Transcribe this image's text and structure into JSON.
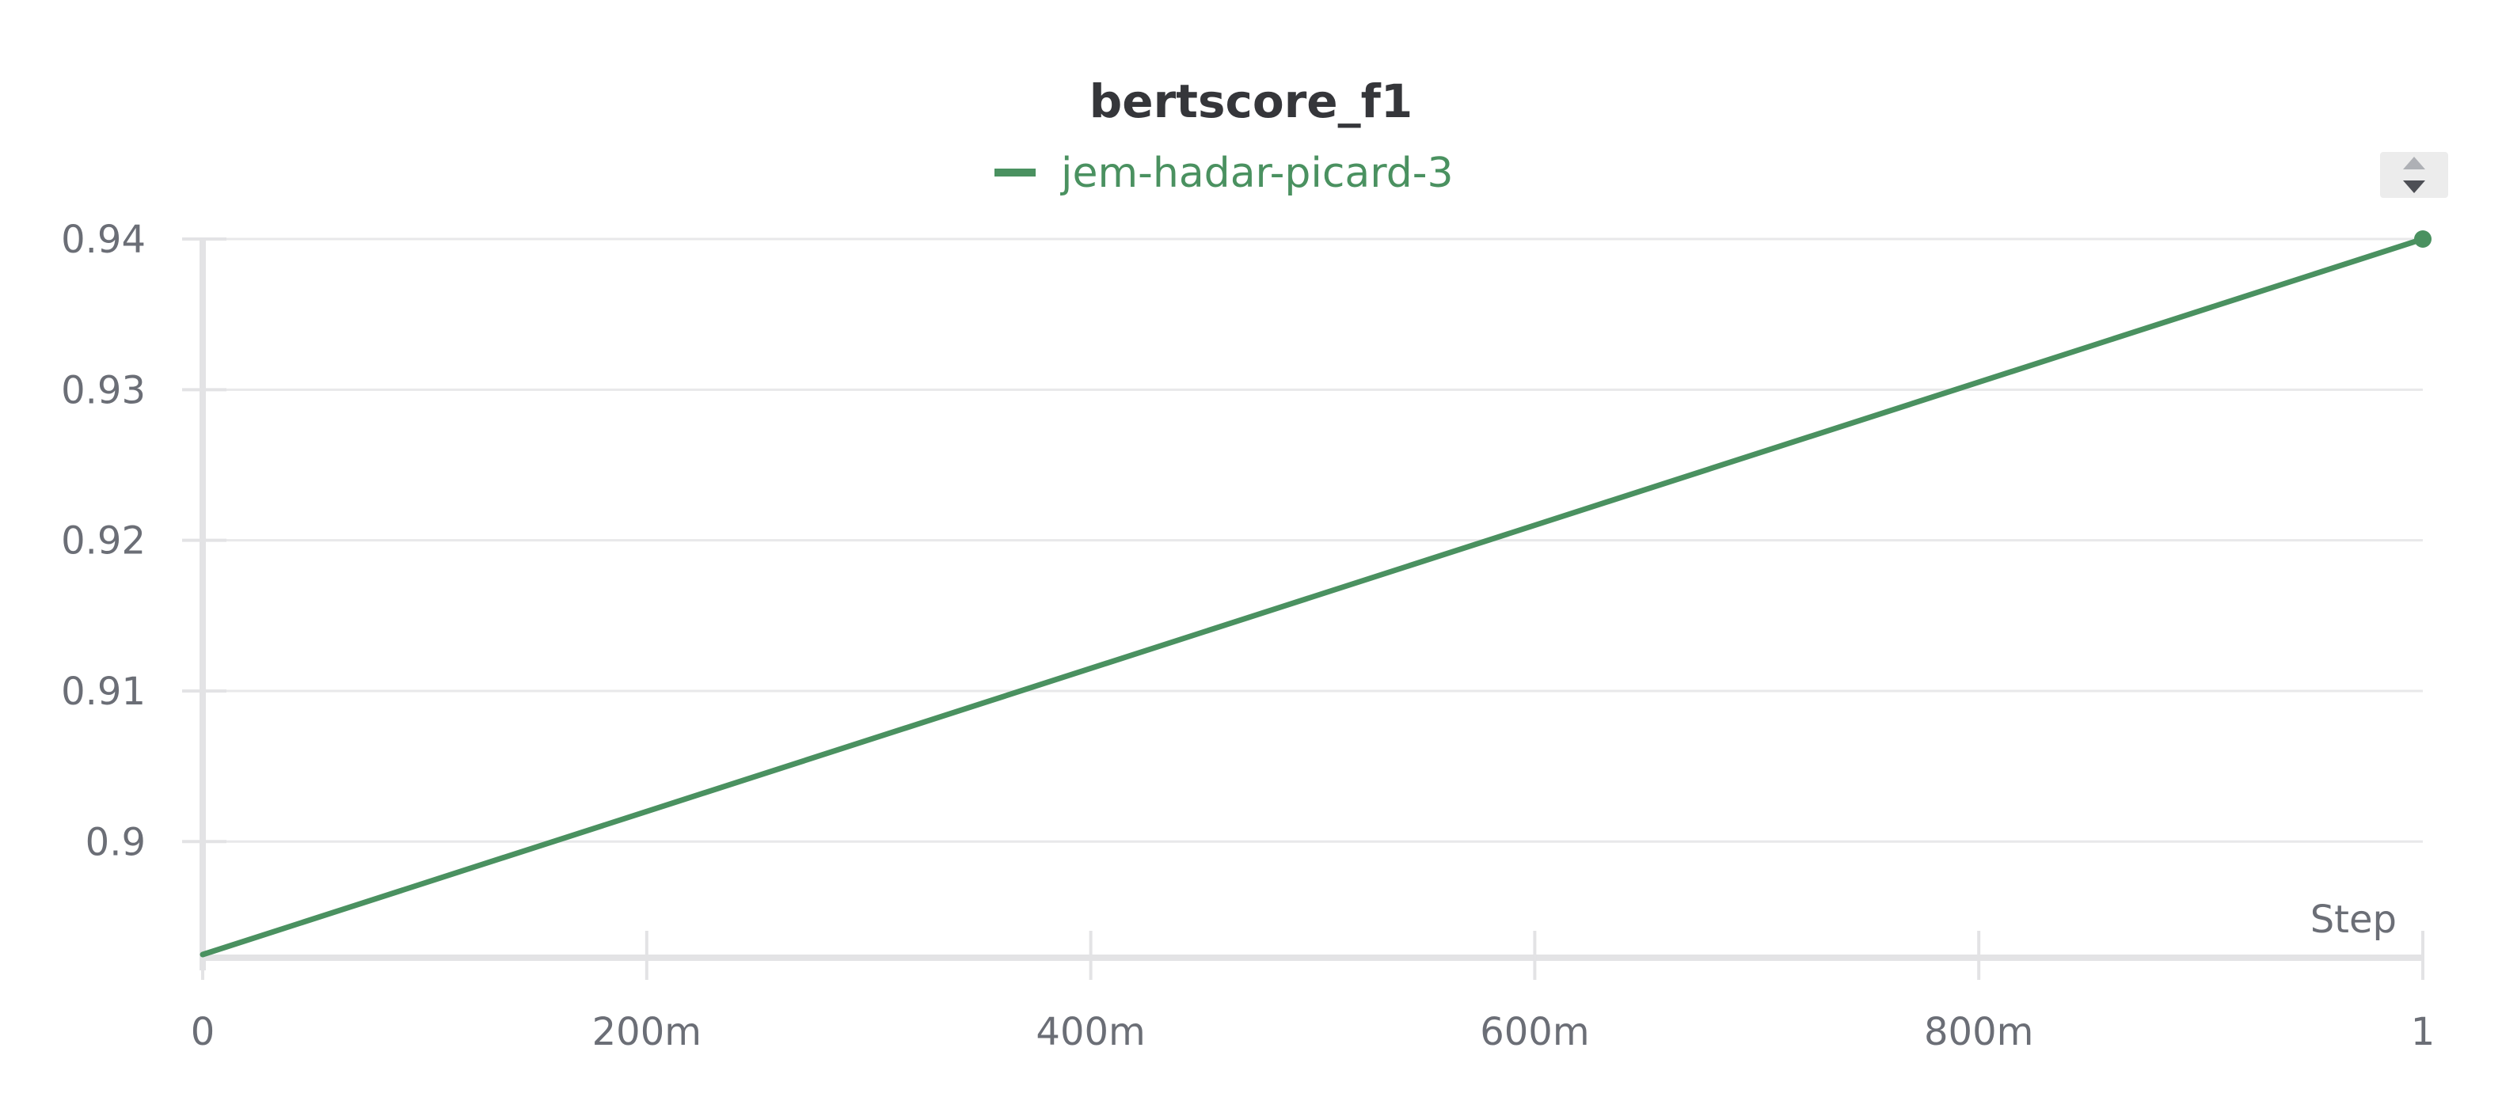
{
  "chart_data": {
    "type": "line",
    "title": "bertscore_f1",
    "xlabel": "Step",
    "ylabel": "",
    "xlim": [
      0,
      1
    ],
    "ylim": [
      0.8925,
      0.94
    ],
    "x_ticks": [
      0,
      0.2,
      0.4,
      0.6,
      0.8,
      1
    ],
    "x_tick_labels": [
      "0",
      "200m",
      "400m",
      "600m",
      "800m",
      "1"
    ],
    "y_ticks": [
      0.9,
      0.91,
      0.92,
      0.93,
      0.94
    ],
    "y_tick_labels": [
      "0.9",
      "0.91",
      "0.92",
      "0.93",
      "0.94"
    ],
    "grid": true,
    "legend_position": "top-center",
    "series": [
      {
        "name": "jem-hadar-picard-3",
        "color": "#4a9160",
        "x": [
          0,
          1
        ],
        "values": [
          0.8925,
          0.94
        ]
      }
    ]
  },
  "colors": {
    "grid": "#e8e8ea",
    "axis": "#e3e3e5",
    "tick_text": "#6b6e76",
    "title": "#35363a"
  },
  "controls": {
    "sort_icon": "sort-updown-icon"
  }
}
